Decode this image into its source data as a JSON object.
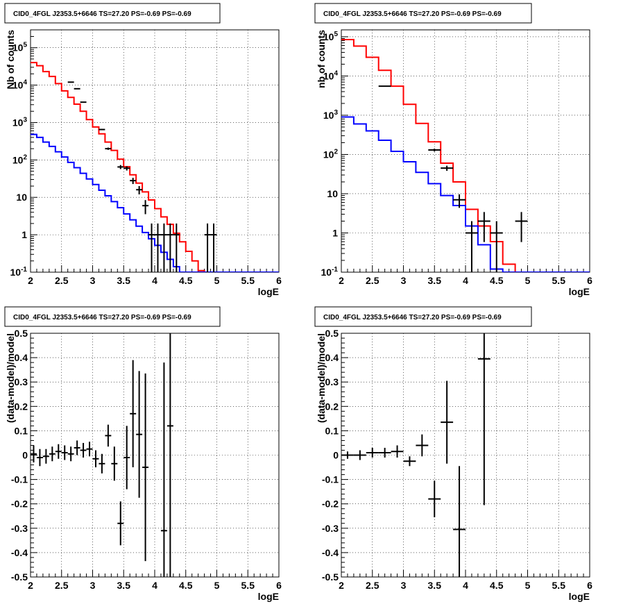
{
  "colors": {
    "data": "#000000",
    "model_total": "#ff0000",
    "model_component": "#0000ff",
    "grid": "#000000",
    "background": "#ffffff"
  },
  "panels": [
    {
      "id": "top-left",
      "title": "CID0_4FGL J2353.5+6646 TS=27.20 PS=-0.69 PS=-0.69",
      "xlabel": "logE",
      "ylabel": "Nb of counts"
    },
    {
      "id": "top-right",
      "title": "CID0_4FGL J2353.5+6646 TS=27.20 PS=-0.69 PS=-0.69",
      "xlabel": "logE",
      "ylabel": "nb of counts"
    },
    {
      "id": "bottom-left",
      "title": "CID0_4FGL J2353.5+6646 TS=27.20 PS=-0.69 PS=-0.69",
      "xlabel": "logE",
      "ylabel": "(data-model)/model"
    },
    {
      "id": "bottom-right",
      "title": "CID0_4FGL J2353.5+6646 TS=27.20 PS=-0.69 PS=-0.69",
      "xlabel": "logE",
      "ylabel": "(data-model)/model"
    }
  ],
  "chart_data": [
    {
      "type": "line",
      "subtype": "step-histogram-with-errorbars",
      "title": "CID0_4FGL J2353.5+6646 TS=27.20 PS=-0.69 PS=-0.69",
      "xlabel": "logE",
      "ylabel": "Nb of counts",
      "xlim": [
        2,
        6
      ],
      "ylim": [
        0.1,
        300000
      ],
      "yscale": "log",
      "grid": true,
      "xticks": [
        "2",
        "2.5",
        "3",
        "3.5",
        "4",
        "4.5",
        "5",
        "5.5",
        "6"
      ],
      "yticks": [
        "10^-1",
        "1",
        "10",
        "10^2",
        "10^3",
        "10^4",
        "10^5"
      ],
      "x_edges": [
        2.0,
        2.1,
        2.2,
        2.3,
        2.4,
        2.5,
        2.6,
        2.7,
        2.8,
        2.9,
        3.0,
        3.1,
        3.2,
        3.3,
        3.4,
        3.5,
        3.6,
        3.7,
        3.8,
        3.9,
        4.0,
        4.1,
        4.2,
        4.3,
        4.4,
        4.5,
        4.6,
        4.7,
        4.8,
        4.9,
        5.0,
        5.1,
        5.2,
        5.3,
        5.4,
        5.5,
        5.6,
        5.7,
        5.8,
        5.9,
        6.0
      ],
      "series": [
        {
          "name": "",
          "color": "#ff0000",
          "kind": "step",
          "values": [
            40000,
            33000,
            23000,
            17000,
            11000,
            7000,
            4700,
            3100,
            2000,
            1200,
            760,
            500,
            300,
            180,
            105,
            66,
            40,
            24,
            14,
            8.5,
            5,
            3,
            1.9,
            1.1,
            0.65,
            0.36,
            0.2,
            0.11,
            0.1,
            0.1,
            0.1,
            0.1,
            0.1,
            0.1,
            0.1,
            0.1,
            0.1,
            0.1,
            0.1,
            0.1
          ]
        },
        {
          "name": "",
          "color": "#0000ff",
          "kind": "step",
          "values": [
            480,
            400,
            300,
            230,
            165,
            120,
            86,
            62,
            44,
            31,
            22,
            15.5,
            11,
            7.7,
            5.3,
            3.6,
            2.5,
            1.7,
            1.15,
            0.78,
            0.52,
            0.34,
            0.22,
            0.14,
            0.1,
            0.1,
            0.1,
            0.1,
            0.1,
            0.1,
            0.1,
            0.1,
            0.1,
            0.1,
            0.1,
            0.1,
            0.1,
            0.1,
            0.1,
            0.1
          ]
        },
        {
          "name": "",
          "color": "#000000",
          "kind": "points",
          "x": [
            2.65,
            2.75,
            2.85,
            3.15,
            3.25,
            3.45,
            3.55,
            3.65,
            3.75,
            3.85,
            3.95,
            4.05,
            4.15,
            4.25,
            4.35,
            4.85,
            4.95
          ],
          "values": [
            12000,
            8000,
            3500,
            650,
            200,
            65,
            60,
            28,
            16,
            6,
            1,
            1,
            1,
            1,
            1,
            1,
            1
          ],
          "xerr": 0.05
        }
      ]
    },
    {
      "type": "line",
      "subtype": "step-histogram-with-errorbars",
      "title": "CID0_4FGL J2353.5+6646 TS=27.20 PS=-0.69 PS=-0.69",
      "xlabel": "logE",
      "ylabel": "nb of counts",
      "xlim": [
        2,
        6
      ],
      "ylim": [
        0.1,
        150000
      ],
      "yscale": "log",
      "grid": true,
      "xticks": [
        "2",
        "2.5",
        "3",
        "3.5",
        "4",
        "4.5",
        "5",
        "5.5",
        "6"
      ],
      "yticks": [
        "10^-1",
        "1",
        "10",
        "10^2",
        "10^3",
        "10^4",
        "10^5"
      ],
      "x_edges": [
        2.0,
        2.2,
        2.4,
        2.6,
        2.8,
        3.0,
        3.2,
        3.4,
        3.6,
        3.8,
        4.0,
        4.2,
        4.4,
        4.6,
        4.8,
        5.0,
        5.2,
        5.4,
        5.6,
        5.8,
        6.0
      ],
      "series": [
        {
          "name": "",
          "color": "#ff0000",
          "kind": "step",
          "values": [
            85000,
            58000,
            30000,
            14000,
            5500,
            1900,
            620,
            210,
            60,
            20,
            4,
            1.5,
            0.6,
            0.16,
            0.1,
            0.1,
            0.1,
            0.1,
            0.1,
            0.1
          ]
        },
        {
          "name": "",
          "color": "#0000ff",
          "kind": "step",
          "values": [
            900,
            600,
            400,
            230,
            120,
            65,
            35,
            18,
            9,
            5,
            1.5,
            0.5,
            0.12,
            0.1,
            0.1,
            0.1,
            0.1,
            0.1,
            0.1,
            0.1
          ]
        },
        {
          "name": "",
          "color": "#000000",
          "kind": "points",
          "x": [
            2.7,
            3.5,
            3.7,
            3.9,
            4.1,
            4.3,
            4.5,
            4.9
          ],
          "values": [
            5500,
            130,
            45,
            7,
            1,
            2,
            1,
            2
          ],
          "xerr": 0.1
        }
      ]
    },
    {
      "type": "scatter",
      "subtype": "residuals-with-errorbars",
      "title": "CID0_4FGL J2353.5+6646 TS=27.20 PS=-0.69 PS=-0.69",
      "xlabel": "logE",
      "ylabel": "(data-model)/model",
      "xlim": [
        2,
        6
      ],
      "ylim": [
        -0.5,
        0.5
      ],
      "grid": true,
      "xticks": [
        "2",
        "2.5",
        "3",
        "3.5",
        "4",
        "4.5",
        "5",
        "5.5",
        "6"
      ],
      "yticks": [
        "-0.5",
        "-0.4",
        "-0.3",
        "-0.2",
        "-0.1",
        "0",
        "0.1",
        "0.2",
        "0.3",
        "0.4",
        "0.5"
      ],
      "points": [
        {
          "x": 2.05,
          "y": 0.005,
          "err": 0.035
        },
        {
          "x": 2.15,
          "y": -0.01,
          "err": 0.035
        },
        {
          "x": 2.25,
          "y": -0.005,
          "err": 0.03
        },
        {
          "x": 2.35,
          "y": 0.005,
          "err": 0.03
        },
        {
          "x": 2.45,
          "y": 0.015,
          "err": 0.03
        },
        {
          "x": 2.55,
          "y": 0.01,
          "err": 0.03
        },
        {
          "x": 2.65,
          "y": 0.005,
          "err": 0.03
        },
        {
          "x": 2.75,
          "y": 0.03,
          "err": 0.03
        },
        {
          "x": 2.85,
          "y": 0.02,
          "err": 0.03
        },
        {
          "x": 2.95,
          "y": 0.025,
          "err": 0.03
        },
        {
          "x": 3.05,
          "y": -0.015,
          "err": 0.035
        },
        {
          "x": 3.15,
          "y": -0.035,
          "err": 0.04
        },
        {
          "x": 3.25,
          "y": 0.08,
          "err": 0.045
        },
        {
          "x": 3.35,
          "y": -0.035,
          "err": 0.07
        },
        {
          "x": 3.45,
          "y": -0.28,
          "err": 0.09
        },
        {
          "x": 3.55,
          "y": -0.01,
          "err": 0.13
        },
        {
          "x": 3.65,
          "y": 0.17,
          "err": 0.22
        },
        {
          "x": 3.75,
          "y": 0.085,
          "err": 0.26
        },
        {
          "x": 3.85,
          "y": -0.05,
          "err": 0.385
        },
        {
          "x": 4.15,
          "y": -0.31,
          "err": 0.69
        },
        {
          "x": 4.25,
          "y": 0.12,
          "err": 0.9
        }
      ],
      "xerr": 0.05
    },
    {
      "type": "scatter",
      "subtype": "residuals-with-errorbars",
      "title": "CID0_4FGL J2353.5+6646 TS=27.20 PS=-0.69 PS=-0.69",
      "xlabel": "logE",
      "ylabel": "(data-model)/model",
      "xlim": [
        2,
        6
      ],
      "ylim": [
        -0.5,
        0.5
      ],
      "grid": true,
      "xticks": [
        "2",
        "2.5",
        "3",
        "3.5",
        "4",
        "4.5",
        "5",
        "5.5",
        "6"
      ],
      "yticks": [
        "-0.5",
        "-0.4",
        "-0.3",
        "-0.2",
        "-0.1",
        "0",
        "0.1",
        "0.2",
        "0.3",
        "0.4",
        "0.5"
      ],
      "points": [
        {
          "x": 2.1,
          "y": 0.0,
          "err": 0.015
        },
        {
          "x": 2.3,
          "y": 0.0,
          "err": 0.02
        },
        {
          "x": 2.5,
          "y": 0.01,
          "err": 0.02
        },
        {
          "x": 2.7,
          "y": 0.01,
          "err": 0.02
        },
        {
          "x": 2.9,
          "y": 0.015,
          "err": 0.025
        },
        {
          "x": 3.1,
          "y": -0.025,
          "err": 0.02
        },
        {
          "x": 3.3,
          "y": 0.04,
          "err": 0.045
        },
        {
          "x": 3.5,
          "y": -0.18,
          "err": 0.075
        },
        {
          "x": 3.7,
          "y": 0.135,
          "err": 0.17
        },
        {
          "x": 3.9,
          "y": -0.305,
          "err": 0.26
        },
        {
          "x": 4.3,
          "y": 0.395,
          "err": 0.6
        }
      ],
      "xerr": 0.1
    }
  ]
}
